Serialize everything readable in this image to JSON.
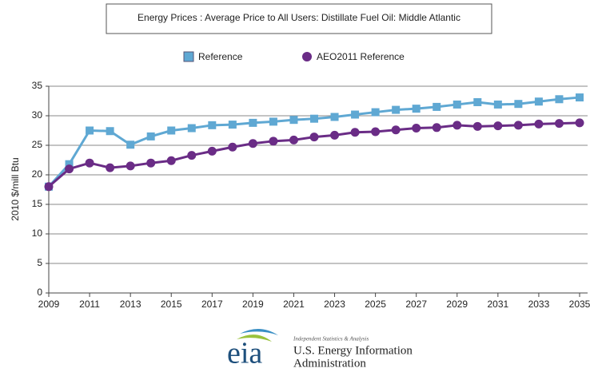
{
  "chart_data": {
    "type": "line",
    "title": "Energy Prices : Average Price to All Users: Distillate Fuel Oil: Middle Atlantic",
    "y_label": "2010 $/mill Btu",
    "x": [
      2009,
      2010,
      2011,
      2012,
      2013,
      2014,
      2015,
      2016,
      2017,
      2018,
      2019,
      2020,
      2021,
      2022,
      2023,
      2024,
      2025,
      2026,
      2027,
      2028,
      2029,
      2030,
      2031,
      2032,
      2033,
      2034,
      2035
    ],
    "series": [
      {
        "name": "Reference",
        "color": "#5fa8d3",
        "marker": "square",
        "values": [
          18.0,
          21.8,
          27.5,
          27.4,
          25.1,
          26.5,
          27.5,
          27.9,
          28.4,
          28.5,
          28.8,
          29.0,
          29.3,
          29.5,
          29.8,
          30.2,
          30.6,
          31.0,
          31.2,
          31.5,
          31.9,
          32.3,
          31.9,
          32.0,
          32.4,
          32.8,
          33.1
        ]
      },
      {
        "name": "AEO2011 Reference",
        "color": "#6a2c86",
        "marker": "circle",
        "values": [
          18.0,
          21.0,
          22.0,
          21.2,
          21.5,
          22.0,
          22.4,
          23.3,
          24.0,
          24.7,
          25.3,
          25.7,
          25.9,
          26.4,
          26.7,
          27.2,
          27.3,
          27.6,
          27.9,
          28.0,
          28.4,
          28.2,
          28.3,
          28.4,
          28.6,
          28.7,
          28.8
        ]
      }
    ],
    "xlim": [
      2009,
      2035
    ],
    "xticks": [
      2009,
      2011,
      2013,
      2015,
      2017,
      2019,
      2021,
      2023,
      2025,
      2027,
      2029,
      2031,
      2033,
      2035
    ],
    "ylim": [
      0,
      35
    ],
    "yticks": [
      0,
      5,
      10,
      15,
      20,
      25,
      30,
      35
    ],
    "grid": true,
    "legend": "top"
  },
  "logo": {
    "mark": "eia",
    "tagline": "Independent Statistics & Analysis",
    "line1": "U.S. Energy Information",
    "line2": "Administration"
  }
}
